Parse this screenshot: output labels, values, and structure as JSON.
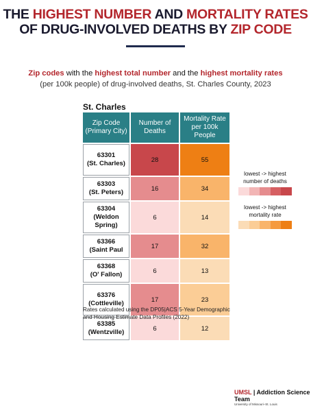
{
  "title": {
    "line1_a": "THE ",
    "line1_b": "HIGHEST NUMBER",
    "line1_c": " AND ",
    "line1_d": "MORTALITY RATES",
    "line2_a": "OF DRUG-INVOLVED DEATHS BY ",
    "line2_b": "ZIP CODE"
  },
  "subtitle": {
    "p1": "Zip codes",
    "p2": " with the ",
    "p3": "highest total number",
    "p4": " and the ",
    "p5": "highest mortality rates",
    "line2": "(per 100k people) of drug-involved deaths, St. Charles County, 2023"
  },
  "chart_data": {
    "type": "table",
    "region": "St. Charles",
    "columns": [
      "Zip Code (Primary City)",
      "Number of Deaths",
      "Mortality Rate per 100k People"
    ],
    "rows": [
      {
        "zip": "63301",
        "city": "(St. Charles)",
        "deaths": 28,
        "rate": 55
      },
      {
        "zip": "63303",
        "city": "(St. Peters)",
        "deaths": 16,
        "rate": 34
      },
      {
        "zip": "63304",
        "city": "(Weldon Spring)",
        "deaths": 6,
        "rate": 14
      },
      {
        "zip": "63366",
        "city": "(Saint Paul",
        "deaths": 17,
        "rate": 32
      },
      {
        "zip": "63368",
        "city": "(O' Fallon)",
        "deaths": 6,
        "rate": 13
      },
      {
        "zip": "63376",
        "city": "(Cottleville)",
        "deaths": 17,
        "rate": 23
      },
      {
        "zip": "63385",
        "city": "(Wentzville)",
        "deaths": 6,
        "rate": 12
      }
    ],
    "colors": {
      "header": "#2a7f86",
      "deaths_scale": [
        "#fbdada",
        "#f2b5b5",
        "#e58c8e",
        "#d65f62",
        "#c8474b"
      ],
      "rate_scale": [
        "#fbdcb6",
        "#fbcd96",
        "#f9b46a",
        "#f59a3e",
        "#ee7f14"
      ]
    },
    "footnote": "Rates calculated using the DP05|ACS 5-Year Demographic and Housing Estimate Data Profiles (2022)"
  },
  "legend": {
    "deaths_label": "lowest -> highest number of deaths",
    "rate_label": "lowest -> highest mortality rate"
  },
  "logo": {
    "brand": "UMSL",
    "name": "Addiction Science Team",
    "sub": "University of Missouri–St. Louis"
  }
}
